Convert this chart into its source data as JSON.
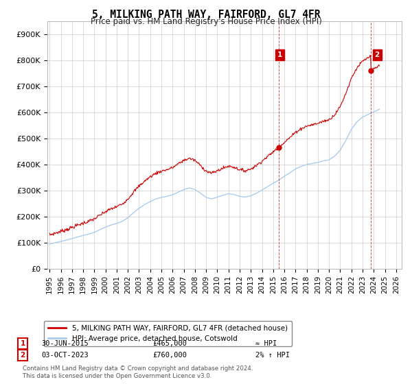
{
  "title": "5, MILKING PATH WAY, FAIRFORD, GL7 4FR",
  "subtitle": "Price paid vs. HM Land Registry's House Price Index (HPI)",
  "ylabel_ticks": [
    "£0",
    "£100K",
    "£200K",
    "£300K",
    "£400K",
    "£500K",
    "£600K",
    "£700K",
    "£800K",
    "£900K"
  ],
  "ytick_values": [
    0,
    100000,
    200000,
    300000,
    400000,
    500000,
    600000,
    700000,
    800000,
    900000
  ],
  "ylim": [
    0,
    950000
  ],
  "xlim_start": 1994.8,
  "xlim_end": 2026.5,
  "legend_line1": "5, MILKING PATH WAY, FAIRFORD, GL7 4FR (detached house)",
  "legend_line2": "HPI: Average price, detached house, Cotswold",
  "annotation1_label": "1",
  "annotation1_date": "30-JUN-2015",
  "annotation1_price": "£465,000",
  "annotation1_hpi": "≈ HPI",
  "annotation2_label": "2",
  "annotation2_date": "03-OCT-2023",
  "annotation2_price": "£760,000",
  "annotation2_hpi": "2% ↑ HPI",
  "footnote": "Contains HM Land Registry data © Crown copyright and database right 2024.\nThis data is licensed under the Open Government Licence v3.0.",
  "line_color_red": "#cc0000",
  "line_color_blue": "#aaccee",
  "bg_color": "#ffffff",
  "grid_color": "#cccccc",
  "annotation_box_color": "#cc0000",
  "hpi_years": [
    1995,
    1995.5,
    1996,
    1996.5,
    1997,
    1997.5,
    1998,
    1998.5,
    1999,
    1999.5,
    2000,
    2000.5,
    2001,
    2001.5,
    2002,
    2002.5,
    2003,
    2003.5,
    2004,
    2004.5,
    2005,
    2005.5,
    2006,
    2006.5,
    2007,
    2007.5,
    2008,
    2008.5,
    2009,
    2009.5,
    2010,
    2010.5,
    2011,
    2011.5,
    2012,
    2012.5,
    2013,
    2013.5,
    2014,
    2014.5,
    2015,
    2015.5,
    2016,
    2016.5,
    2017,
    2017.5,
    2018,
    2018.5,
    2019,
    2019.5,
    2020,
    2020.5,
    2021,
    2021.5,
    2022,
    2022.5,
    2023,
    2023.5,
    2024,
    2024.5
  ],
  "hpi_values": [
    95000,
    100000,
    105000,
    110000,
    116000,
    122000,
    128000,
    133000,
    140000,
    150000,
    160000,
    168000,
    174000,
    182000,
    196000,
    215000,
    232000,
    246000,
    258000,
    268000,
    274000,
    278000,
    284000,
    294000,
    304000,
    310000,
    304000,
    290000,
    274000,
    268000,
    275000,
    282000,
    288000,
    285000,
    278000,
    275000,
    280000,
    290000,
    302000,
    315000,
    328000,
    340000,
    355000,
    368000,
    383000,
    393000,
    400000,
    404000,
    408000,
    414000,
    418000,
    432000,
    455000,
    492000,
    535000,
    564000,
    582000,
    592000,
    602000,
    612000
  ],
  "sale1_year": 2015.5,
  "sale1_price": 465000,
  "sale2_year": 2023.75,
  "sale2_price": 760000,
  "xtick_years": [
    "1995",
    "1996",
    "1997",
    "1998",
    "1999",
    "2000",
    "2001",
    "2002",
    "2003",
    "2004",
    "2005",
    "2006",
    "2007",
    "2008",
    "2009",
    "2010",
    "2011",
    "2012",
    "2013",
    "2014",
    "2015",
    "2016",
    "2017",
    "2018",
    "2019",
    "2020",
    "2021",
    "2022",
    "2023",
    "2024",
    "2025",
    "2026"
  ]
}
